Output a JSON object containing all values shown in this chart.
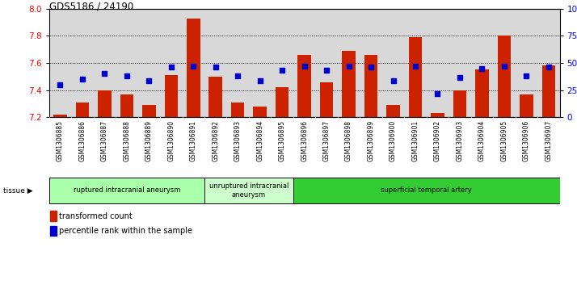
{
  "title": "GDS5186 / 24190",
  "samples": [
    "GSM1306885",
    "GSM1306886",
    "GSM1306887",
    "GSM1306888",
    "GSM1306889",
    "GSM1306890",
    "GSM1306891",
    "GSM1306892",
    "GSM1306893",
    "GSM1306894",
    "GSM1306895",
    "GSM1306896",
    "GSM1306897",
    "GSM1306898",
    "GSM1306899",
    "GSM1306900",
    "GSM1306901",
    "GSM1306902",
    "GSM1306903",
    "GSM1306904",
    "GSM1306905",
    "GSM1306906",
    "GSM1306907"
  ],
  "transformed_count": [
    7.22,
    7.31,
    7.4,
    7.37,
    7.29,
    7.51,
    7.93,
    7.5,
    7.31,
    7.28,
    7.42,
    7.66,
    7.46,
    7.69,
    7.66,
    7.29,
    7.79,
    7.23,
    7.4,
    7.55,
    7.8,
    7.37,
    7.58
  ],
  "percentile_rank": [
    30,
    35,
    40,
    38,
    34,
    46,
    47,
    46,
    38,
    34,
    43,
    47,
    43,
    47,
    46,
    34,
    47,
    22,
    37,
    45,
    47,
    38,
    46
  ],
  "groups": [
    {
      "label": "ruptured intracranial aneurysm",
      "start": 0,
      "end": 7,
      "color": "#aaffaa"
    },
    {
      "label": "unruptured intracranial\naneurysm",
      "start": 7,
      "end": 11,
      "color": "#ccffcc"
    },
    {
      "label": "superficial temporal artery",
      "start": 11,
      "end": 23,
      "color": "#33cc33"
    }
  ],
  "ylim_left": [
    7.2,
    8.0
  ],
  "ylim_right": [
    0,
    100
  ],
  "bar_color": "#cc2200",
  "dot_color": "#0000cc",
  "bg_color": "#d8d8d8",
  "plot_bg_color": "#ffffff",
  "yticks_left": [
    7.2,
    7.4,
    7.6,
    7.8,
    8.0
  ],
  "yticks_right": [
    0,
    25,
    50,
    75,
    100
  ],
  "ytick_labels_right": [
    "0",
    "25",
    "50",
    "75",
    "100%"
  ],
  "grid_dotted_at": [
    7.4,
    7.6,
    7.8
  ]
}
